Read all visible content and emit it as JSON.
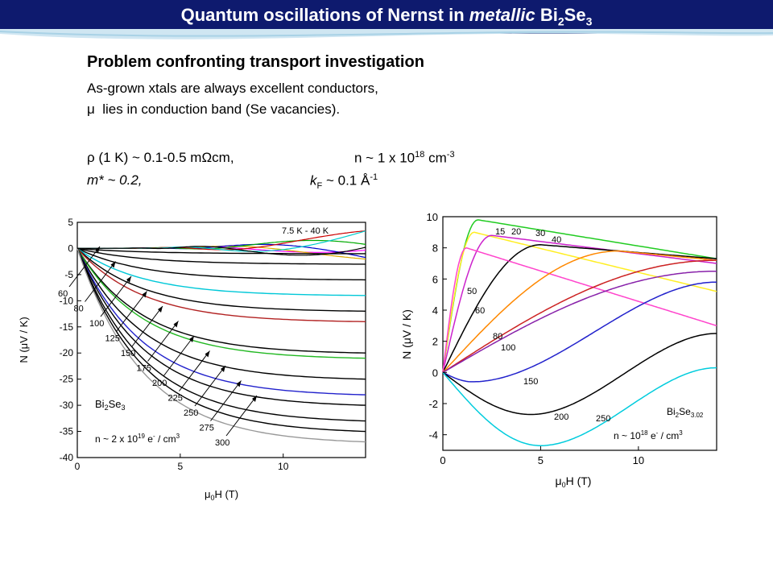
{
  "slide": {
    "title_prefix": "Quantum oscillations of Nernst in ",
    "title_italic": "metallic",
    "title_suffix": " Bi",
    "title_sub": "2",
    "title_se": "Se",
    "title_sub2": "3"
  },
  "text": {
    "heading": "Problem confronting transport investigation",
    "line1": "As-grown xtals are always excellent conductors,",
    "line2_mu": "μ",
    "line2": "lies in conduction band (Se vacancies).",
    "rho_sym": "ρ",
    "rho_text": "(1 K) ~  0.1-0.5 m",
    "omega": "Ω",
    "rho_unit": "cm,",
    "n_text": "n ~  1 x 10",
    "n_exp": "18",
    "n_unit": " cm",
    "n_unit_exp": "-3",
    "mstar": "m* ~ 0.2,",
    "kf_k": "k",
    "kf_sub": "F",
    "kf_text": " ~ 0.1 Å",
    "kf_exp": "-1"
  },
  "chart_data": [
    {
      "type": "line",
      "xlabel": "μ0H (T)",
      "ylabel": "N (μV / K)",
      "xlim": [
        0,
        14
      ],
      "ylim": [
        -40,
        5
      ],
      "x_ticks": [
        0,
        5,
        10
      ],
      "y_ticks": [
        5,
        0,
        -5,
        -10,
        -15,
        -20,
        -25,
        -30,
        -35,
        -40
      ],
      "sample_label": "Bi2Se3",
      "density_label": "n ~ 2 x 10^19 e- / cm3",
      "top_label": "7.5 K - 40 K",
      "series": [
        {
          "name": "60",
          "color": "#000000",
          "final": -1
        },
        {
          "name": "80",
          "color": "#000000",
          "final": -3
        },
        {
          "name": "100",
          "color": "#000000",
          "final": -6
        },
        {
          "name": "",
          "color": "#00c8d8",
          "final": -9
        },
        {
          "name": "125",
          "color": "#000000",
          "final": -12
        },
        {
          "name": "",
          "color": "#b22222",
          "final": -14
        },
        {
          "name": "150",
          "color": "#000000",
          "final": -20
        },
        {
          "name": "",
          "color": "#22b822",
          "final": -21
        },
        {
          "name": "175",
          "color": "#000000",
          "final": -25
        },
        {
          "name": "200",
          "color": "#2222cc",
          "final": -28
        },
        {
          "name": "225",
          "color": "#000000",
          "final": -30
        },
        {
          "name": "250",
          "color": "#000000",
          "final": -33
        },
        {
          "name": "275",
          "color": "#000000",
          "final": -35
        },
        {
          "name": "300",
          "color": "#999999",
          "final": -37
        }
      ]
    },
    {
      "type": "line",
      "xlabel": "μ0H (T)",
      "ylabel": "N (μV / K)",
      "xlim": [
        0,
        14
      ],
      "ylim": [
        -5,
        10
      ],
      "x_ticks": [
        0,
        5,
        10
      ],
      "y_ticks": [
        10,
        8,
        6,
        4,
        2,
        0,
        -2,
        -4
      ],
      "sample_label": "Bi2Se3.02",
      "density_label": "n ~ 10^18 e- / cm3",
      "series": [
        {
          "name": "15",
          "color": "#22cc22",
          "peak_x": 1.8,
          "peak": 9.8,
          "end": 7.3
        },
        {
          "name": "20",
          "color": "#ffee22",
          "peak_x": 1.6,
          "peak": 9.0,
          "end": 5.2
        },
        {
          "name": "30",
          "color": "#cc22cc",
          "peak_x": 2.5,
          "peak": 8.8,
          "end": 7.0
        },
        {
          "name": "40",
          "color": "#000000",
          "peak_x": 5.0,
          "peak": 8.2,
          "end": 7.3
        },
        {
          "name": "50",
          "color": "#ff44cc",
          "peak_x": 1.2,
          "peak": 8.0,
          "end": 3.0
        },
        {
          "name": "60",
          "color": "#ff8800",
          "peak_x": 9.0,
          "peak": 7.8,
          "end": 7.2
        },
        {
          "name": "80",
          "color": "#cc2222",
          "peak_x": 14.0,
          "peak": 7.2,
          "end": 7.2
        },
        {
          "name": "100",
          "color": "#8822aa",
          "peak_x": 14.0,
          "peak": 6.5,
          "end": 6.5
        },
        {
          "name": "150",
          "color": "#2222cc",
          "min_x": 1.5,
          "min": -0.6,
          "end": 5.8
        },
        {
          "name": "200",
          "color": "#000000",
          "min_x": 4.5,
          "min": -2.7,
          "end": 2.5
        },
        {
          "name": "250",
          "color": "#00ccdd",
          "min_x": 5.0,
          "min": -4.7,
          "end": 0.3
        }
      ]
    }
  ]
}
